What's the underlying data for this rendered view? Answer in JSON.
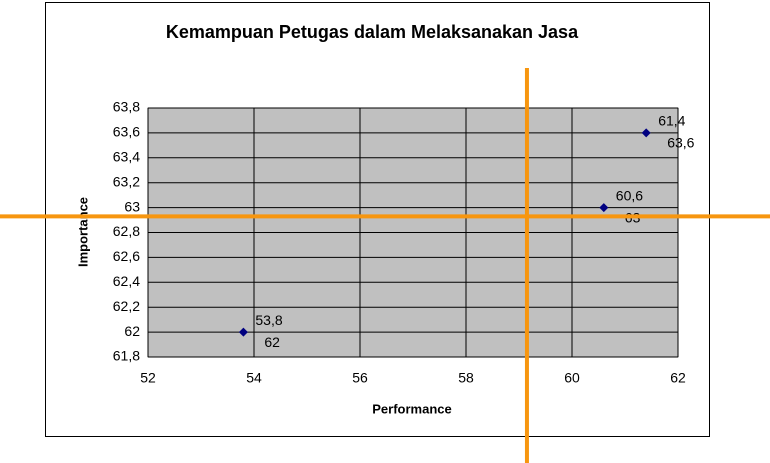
{
  "chart_data": {
    "type": "scatter",
    "title": "Kemampuan Petugas dalam Melaksanakan Jasa",
    "x_label": "Performance",
    "y_label": "Importance",
    "series": [
      {
        "color": "#000080",
        "x": [
          53.8,
          60.6,
          61.4
        ],
        "values": [
          62,
          63,
          63.6
        ],
        "x_labels": [
          "53,8",
          "60,6",
          "61,4"
        ],
        "value_labels": [
          "62",
          "63",
          "63,6"
        ]
      }
    ],
    "xlim": [
      52,
      62
    ],
    "xticks": [
      52,
      54,
      56,
      58,
      60,
      62
    ],
    "ylim": [
      61.8,
      63.8
    ],
    "yticks": [
      {
        "value": 61.8,
        "label": "61,8"
      },
      62,
      {
        "value": 62.2,
        "label": "62,2"
      },
      {
        "value": 62.4,
        "label": "62,4"
      },
      {
        "value": 62.6,
        "label": "62,6"
      },
      {
        "value": 62.8,
        "label": "62,8"
      },
      63,
      {
        "value": 63.2,
        "label": "63,2"
      },
      {
        "value": 63.4,
        "label": "63,4"
      },
      {
        "value": 63.6,
        "label": "63,6"
      },
      {
        "value": 63.8,
        "label": "63,8"
      }
    ],
    "grid": true,
    "reference_lines": {
      "color": "#f7960f",
      "x": 59.15,
      "y": 62.93
    }
  }
}
